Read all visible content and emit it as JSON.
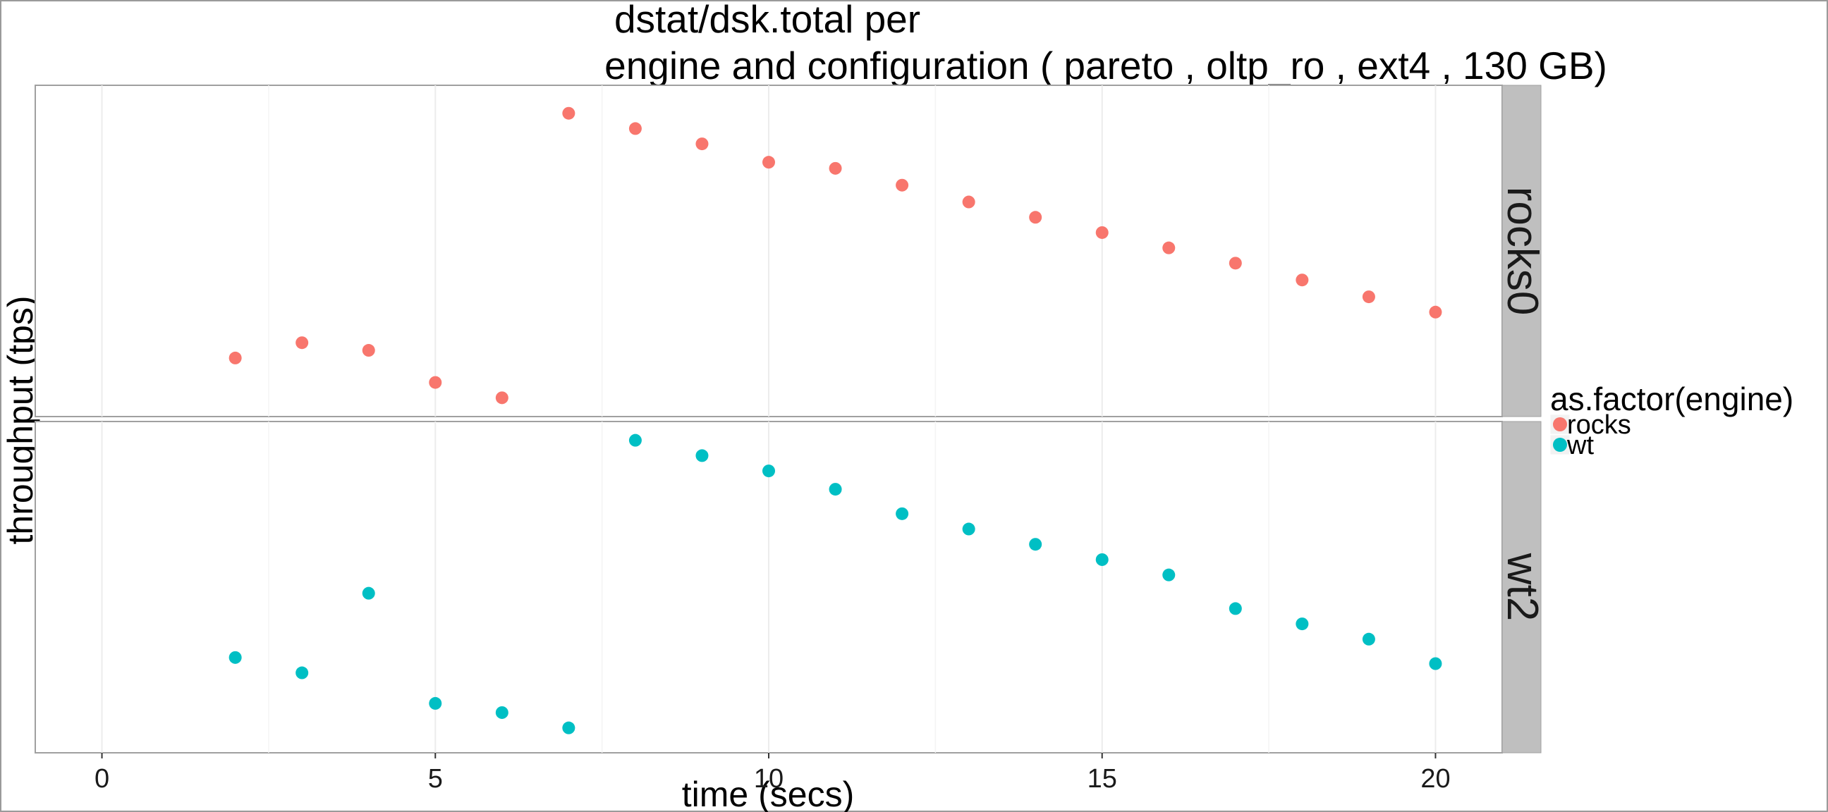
{
  "chart_data": {
    "type": "scatter",
    "title_line1": "dstat/dsk.total per",
    "title_line2": "engine and configuration ( pareto , oltp_ro , ext4 ,  130 GB)",
    "xlabel": "time (secs)",
    "ylabel": "throughput (tps)",
    "xlim": [
      -1,
      21
    ],
    "x_ticks": [
      "0",
      "5",
      "10",
      "15",
      "20"
    ],
    "grid": true,
    "legend_position": "right",
    "legend": {
      "title": "as.factor(engine)",
      "items": [
        {
          "label": "rocks",
          "color": "#F8766D"
        },
        {
          "label": "wt",
          "color": "#00BFC4"
        }
      ]
    },
    "panels": [
      {
        "strip": "rocks0",
        "series": "rocks",
        "color": "#F8766D",
        "ylim": [
          0,
          1
        ],
        "x": [
          2,
          3,
          4,
          5,
          6,
          7,
          8,
          9,
          10,
          11,
          12,
          13,
          14,
          15,
          16,
          17,
          18,
          19,
          20
        ],
        "y": [
          0.15,
          0.2,
          0.175,
          0.07,
          0.02,
          0.95,
          0.9,
          0.85,
          0.79,
          0.77,
          0.715,
          0.66,
          0.61,
          0.56,
          0.51,
          0.46,
          0.405,
          0.35,
          0.3
        ]
      },
      {
        "strip": "wt2",
        "series": "wt",
        "color": "#00BFC4",
        "ylim": [
          0,
          1
        ],
        "x": [
          2,
          3,
          4,
          5,
          6,
          7,
          8,
          9,
          10,
          11,
          12,
          13,
          14,
          15,
          16,
          17,
          18,
          19,
          20
        ],
        "y": [
          0.27,
          0.22,
          0.48,
          0.12,
          0.09,
          0.04,
          0.98,
          0.93,
          0.88,
          0.82,
          0.74,
          0.69,
          0.64,
          0.59,
          0.54,
          0.43,
          0.38,
          0.33,
          0.25
        ]
      }
    ]
  }
}
